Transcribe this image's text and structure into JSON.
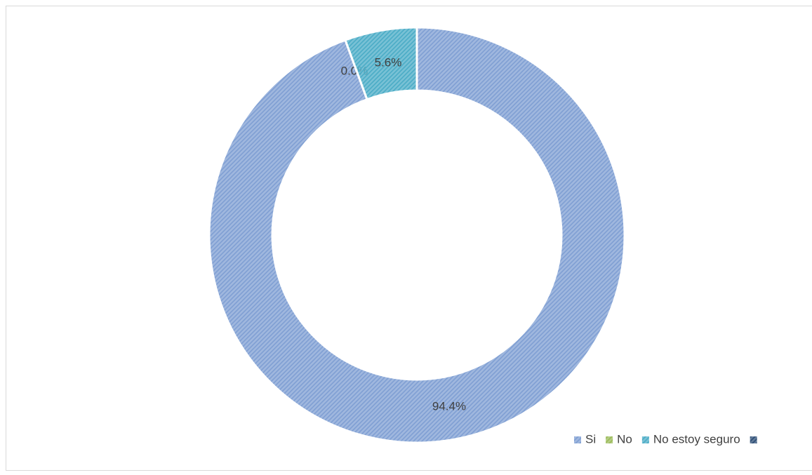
{
  "chart_data": {
    "type": "donut",
    "categories": [
      "Si",
      "No",
      "No estoy seguro",
      null
    ],
    "values": [
      94.4,
      0.0,
      5.6,
      0
    ],
    "value_labels": [
      "94.4%",
      "0.0%",
      "5.6%",
      null
    ],
    "colors": [
      "#7f9fd3",
      "#9bbb59",
      "#4bacc6",
      "#2c4d75"
    ],
    "start_angle": 0,
    "direction": "clockwise",
    "legend": "bottom-right"
  }
}
